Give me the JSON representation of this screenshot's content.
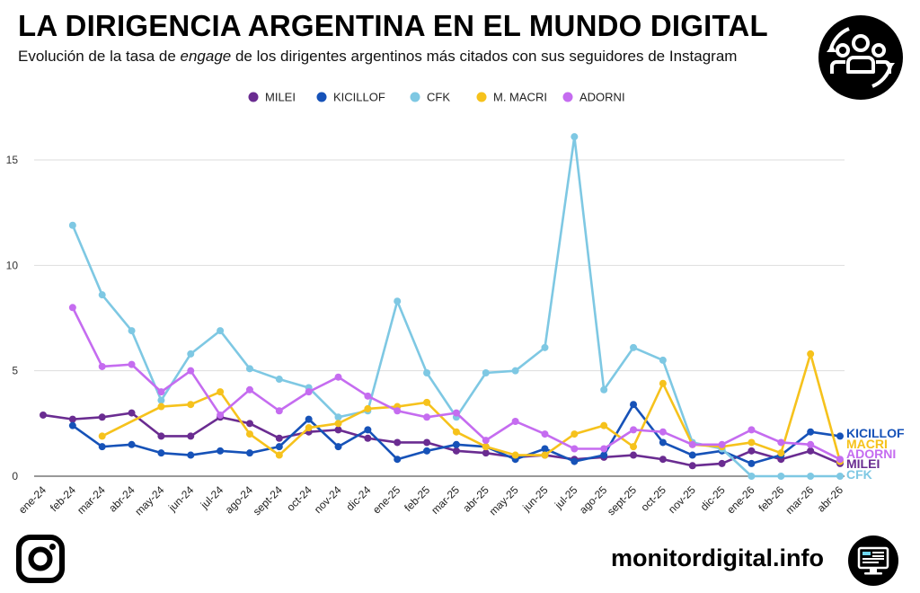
{
  "header": {
    "title": "LA DIRIGENCIA ARGENTINA EN EL MUNDO DIGITAL",
    "subtitle_before": "Evolución de la tasa de ",
    "subtitle_emphasis": "engage",
    "subtitle_after": " de los dirigentes argentinos más citados con sus seguidores de Instagram",
    "brand_icon": "people-cycle-icon"
  },
  "footer": {
    "site": "monitordigital.info",
    "left_icon": "instagram-icon",
    "right_icon": "monitor-dashboard-icon"
  },
  "chart_data": {
    "type": "line",
    "title": "",
    "xlabel": "",
    "ylabel": "",
    "ylim": [
      0,
      16
    ],
    "yticks": [
      0,
      5,
      10,
      15
    ],
    "grid": "horizontal",
    "legend_position": "top",
    "categories": [
      "ene-24",
      "feb-24",
      "mar-24",
      "abr-24",
      "may-24",
      "jun-24",
      "jul-24",
      "ago-24",
      "sept-24",
      "oct-24",
      "nov-24",
      "dic-24",
      "ene-25",
      "feb-25",
      "mar-25",
      "abr-25",
      "may-25",
      "jun-25",
      "jul-25",
      "ago-25",
      "sept-25",
      "oct-25",
      "nov-25",
      "dic-25",
      "ene-26",
      "feb-26",
      "mar-26",
      "abr-26"
    ],
    "series": [
      {
        "name": "MILEI",
        "end_label": "MILEI",
        "color": "#6a2c91",
        "values": [
          2.9,
          2.7,
          2.8,
          3.0,
          1.9,
          1.9,
          2.8,
          2.5,
          1.8,
          2.1,
          2.2,
          1.8,
          1.6,
          1.6,
          1.2,
          1.1,
          0.9,
          1.0,
          0.8,
          0.9,
          1.0,
          0.8,
          0.5,
          0.6,
          1.2,
          0.8,
          1.2,
          0.6
        ]
      },
      {
        "name": "KICILLOF",
        "end_label": "KICILLOF",
        "color": "#1652b8",
        "values": [
          null,
          2.4,
          1.4,
          1.5,
          1.1,
          1.0,
          1.2,
          1.1,
          1.4,
          2.7,
          1.4,
          2.2,
          0.8,
          1.2,
          1.5,
          1.4,
          0.8,
          1.3,
          0.7,
          1.0,
          3.4,
          1.6,
          1.0,
          1.2,
          0.6,
          1.0,
          2.1,
          1.9
        ]
      },
      {
        "name": "CFK",
        "end_label": "CFK",
        "color": "#7ec8e3",
        "values": [
          null,
          11.9,
          8.6,
          6.9,
          3.6,
          5.8,
          6.9,
          5.1,
          4.6,
          4.2,
          2.8,
          3.1,
          8.3,
          4.9,
          2.8,
          4.9,
          5.0,
          6.1,
          16.1,
          4.1,
          6.1,
          5.5,
          1.6,
          1.3,
          0.0,
          0.0,
          0.0,
          0.0
        ]
      },
      {
        "name": "M. MACRI",
        "end_label": "MACRI",
        "color": "#f6c21c",
        "values": [
          null,
          null,
          1.9,
          null,
          3.3,
          3.4,
          4.0,
          2.0,
          1.0,
          2.3,
          2.5,
          3.2,
          3.3,
          3.5,
          2.1,
          1.4,
          1.0,
          1.0,
          2.0,
          2.4,
          1.4,
          4.4,
          1.5,
          1.4,
          1.6,
          1.1,
          5.8,
          0.7
        ]
      },
      {
        "name": "ADORNI",
        "end_label": "ADORNI",
        "color": "#c56cf0",
        "values": [
          null,
          8.0,
          5.2,
          5.3,
          4.0,
          5.0,
          2.9,
          4.1,
          3.1,
          4.0,
          4.7,
          3.8,
          3.1,
          2.8,
          3.0,
          1.7,
          2.6,
          2.0,
          1.3,
          1.3,
          2.2,
          2.1,
          1.5,
          1.5,
          2.2,
          1.6,
          1.5,
          0.8
        ]
      }
    ],
    "end_label_order": [
      "KICILLOF",
      "M. MACRI",
      "ADORNI",
      "MILEI",
      "CFK"
    ]
  }
}
